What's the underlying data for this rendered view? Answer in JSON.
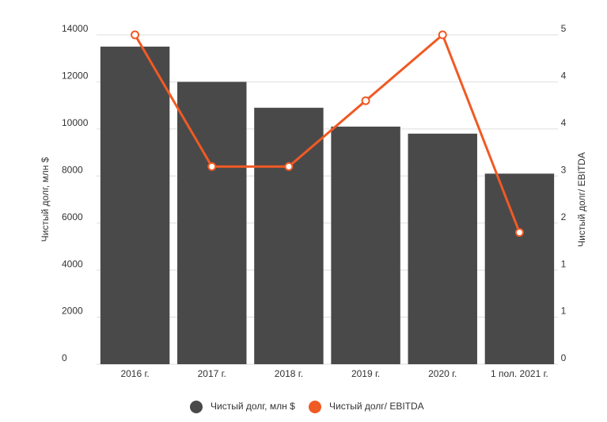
{
  "chart_data": {
    "type": "bar_line",
    "categories": [
      "2016 г.",
      "2017 г.",
      "2018 г.",
      "2019 г.",
      "2020 г.",
      "1 пол. 2021 г."
    ],
    "series": [
      {
        "name": "Чистый долг, млн $",
        "color": "#4a4949",
        "type": "bar",
        "values": [
          13500,
          12000,
          10900,
          10100,
          9800,
          8100
        ]
      },
      {
        "name": "Чистый долг/ EBITDA",
        "color": "#f05a24",
        "type": "line",
        "axis": "y2",
        "values": [
          5,
          3,
          3,
          4,
          5,
          2
        ]
      }
    ],
    "ylabel": "Чистый долг, млн $",
    "y2label": "Чистый долг/ EBITDA",
    "ylim": [
      0,
      14000
    ],
    "yticks": [
      0,
      2000,
      4000,
      6000,
      8000,
      10000,
      12000,
      14000
    ],
    "y2lim": [
      0,
      5
    ],
    "y2ticks": [
      0,
      {
        "value": 0.7143,
        "label": "1"
      },
      {
        "value": 1.4286,
        "label": "1"
      },
      {
        "value": 2.1429,
        "label": "2"
      },
      {
        "value": 2.8571,
        "label": "3"
      },
      {
        "value": 3.5714,
        "label": "4"
      },
      {
        "value": 4.2857,
        "label": "4"
      },
      5
    ],
    "grid": true,
    "legend": "bottom"
  }
}
